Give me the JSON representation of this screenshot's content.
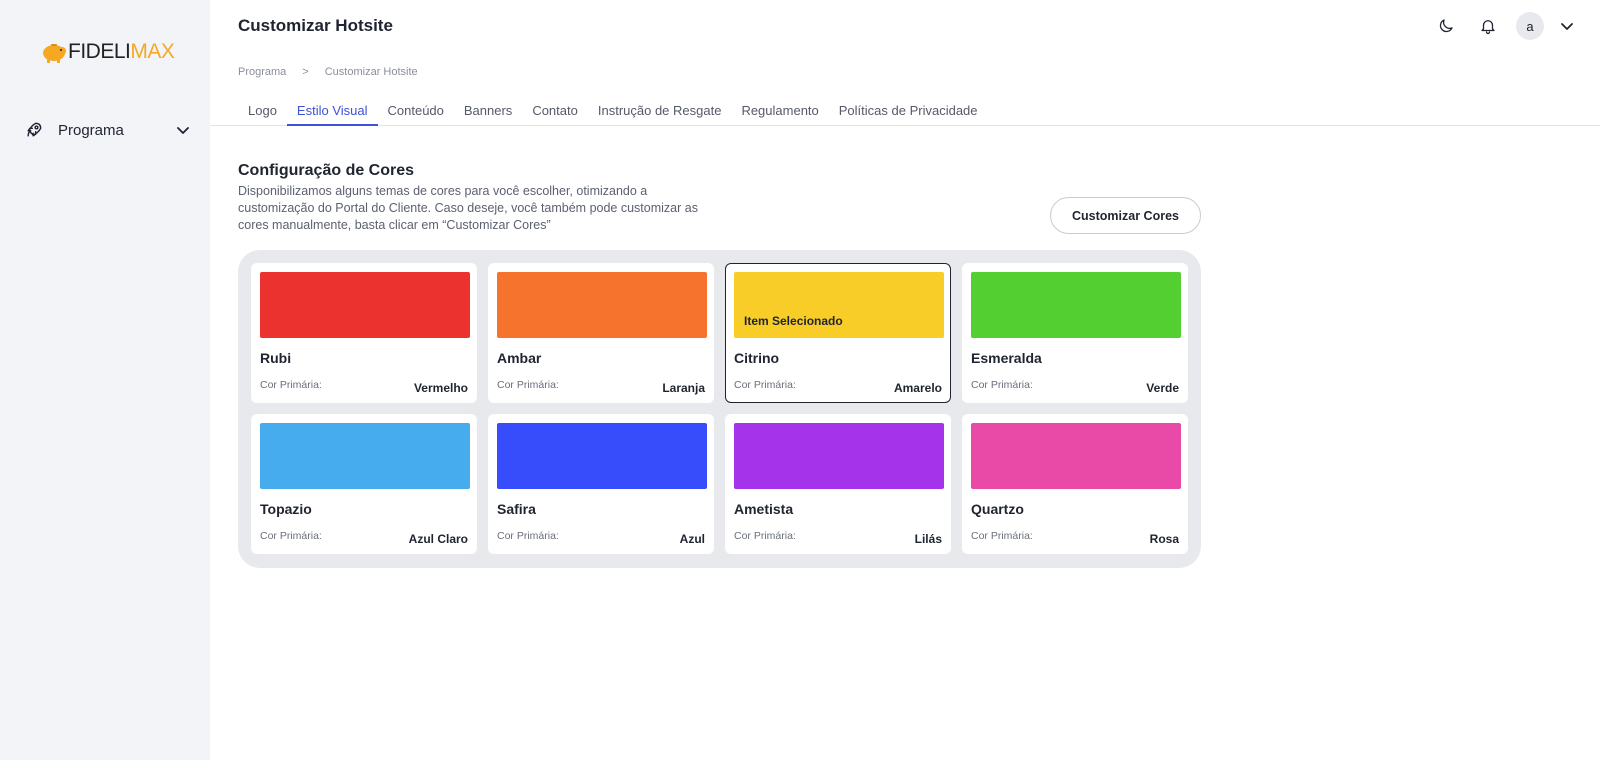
{
  "brand": {
    "logo_part1": "FIDELI",
    "logo_part2": "MAX",
    "logo_accent": "#f6a821"
  },
  "sidebar": {
    "items": [
      {
        "label": "Programa",
        "icon": "rocket-icon"
      }
    ]
  },
  "header": {
    "title": "Customizar Hotsite",
    "avatar_letter": "a"
  },
  "breadcrumb": {
    "items": [
      "Programa",
      "Customizar Hotsite"
    ],
    "separator": ">"
  },
  "tabs": [
    {
      "label": "Logo"
    },
    {
      "label": "Estilo Visual",
      "active": true
    },
    {
      "label": "Conteúdo"
    },
    {
      "label": "Banners"
    },
    {
      "label": "Contato"
    },
    {
      "label": "Instrução de Resgate"
    },
    {
      "label": "Regulamento"
    },
    {
      "label": "Políticas de Privacidade"
    }
  ],
  "section": {
    "title": "Configuração de Cores",
    "description": "Disponibilizamos alguns temas de cores para você escolher, otimizando a customização do Portal do Cliente. Caso deseje, você também pode customizar as cores manualmente, basta clicar em “Customizar Cores”",
    "customize_button": "Customizar Cores"
  },
  "themes": {
    "primary_label": "Cor Primária:",
    "selected_label": "Item Selecionado",
    "items": [
      {
        "name": "Rubi",
        "primary": "Vermelho",
        "color": "#ec322f",
        "selected": false
      },
      {
        "name": "Ambar",
        "primary": "Laranja",
        "color": "#f5732d",
        "selected": false
      },
      {
        "name": "Citrino",
        "primary": "Amarelo",
        "color": "#f8cd27",
        "selected": true
      },
      {
        "name": "Esmeralda",
        "primary": "Verde",
        "color": "#54cf32",
        "selected": false
      },
      {
        "name": "Topazio",
        "primary": "Azul Claro",
        "color": "#47acee",
        "selected": false
      },
      {
        "name": "Safira",
        "primary": "Azul",
        "color": "#374cfb",
        "selected": false
      },
      {
        "name": "Ametista",
        "primary": "Lilás",
        "color": "#a533ea",
        "selected": false
      },
      {
        "name": "Quartzo",
        "primary": "Rosa",
        "color": "#e94aa8",
        "selected": false
      }
    ]
  }
}
